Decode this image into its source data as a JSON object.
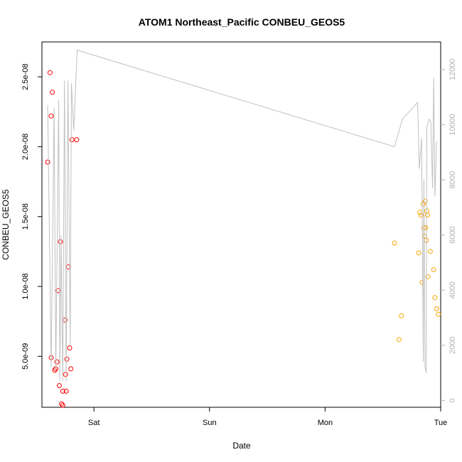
{
  "chart_data": {
    "type": "scatter",
    "title": "ATOM1 Northeast_Pacific CONBEU_GEOS5",
    "xlabel": "Date",
    "ylabel": "CONBEU_GEOS5",
    "x_units": "days since Fri 00:00",
    "xlim": [
      0.55,
      4.0
    ],
    "ylim": [
      1.35e-09,
      2.75e-08
    ],
    "y2lim": [
      -250,
      13000
    ],
    "x_ticks": [
      {
        "value": 1.0,
        "label": "Sat"
      },
      {
        "value": 2.0,
        "label": "Sun"
      },
      {
        "value": 3.0,
        "label": "Mon"
      },
      {
        "value": 4.0,
        "label": "Tue"
      }
    ],
    "y_ticks": [
      {
        "value": 5e-09,
        "label": "5.0e-09"
      },
      {
        "value": 1e-08,
        "label": "1.0e-08"
      },
      {
        "value": 1.5e-08,
        "label": "1.5e-08"
      },
      {
        "value": 2e-08,
        "label": "2.0e-08"
      },
      {
        "value": 2.5e-08,
        "label": "2.5e-08"
      }
    ],
    "y2_ticks": [
      {
        "value": 0,
        "label": "0"
      },
      {
        "value": 2000,
        "label": "2000"
      },
      {
        "value": 4000,
        "label": "4000"
      },
      {
        "value": 6000,
        "label": "6000"
      },
      {
        "value": 8000,
        "label": "8000"
      },
      {
        "value": 10000,
        "label": "10000"
      },
      {
        "value": 12000,
        "label": "12000"
      }
    ],
    "grid": false,
    "series": [
      {
        "role": "points",
        "color": "#ff0000",
        "points": [
          [
            0.6,
            1.89e-08
          ],
          [
            0.62,
            2.53e-08
          ],
          [
            0.63,
            2.22e-08
          ],
          [
            0.64,
            2.39e-08
          ],
          [
            0.63,
            4.9e-09
          ],
          [
            0.66,
            4e-09
          ],
          [
            0.67,
            4.1e-09
          ],
          [
            0.68,
            4.6e-09
          ],
          [
            0.69,
            9.7e-09
          ],
          [
            0.7,
            2.9e-09
          ],
          [
            0.71,
            1.32e-08
          ],
          [
            0.72,
            1.6e-09
          ],
          [
            0.73,
            1.5e-09
          ],
          [
            0.73,
            2.5e-09
          ],
          [
            0.75,
            7.6e-09
          ],
          [
            0.755,
            3.7e-09
          ],
          [
            0.76,
            2.5e-09
          ],
          [
            0.765,
            4.8e-09
          ],
          [
            0.78,
            1.14e-08
          ],
          [
            0.79,
            5.6e-09
          ],
          [
            0.8,
            4.1e-09
          ],
          [
            0.81,
            2.05e-08
          ],
          [
            0.85,
            2.05e-08
          ]
        ]
      },
      {
        "role": "points",
        "color": "#ffa500",
        "points": [
          [
            3.6,
            1.31e-08
          ],
          [
            3.64,
            6.2e-09
          ],
          [
            3.66,
            7.9e-09
          ],
          [
            3.81,
            1.24e-08
          ],
          [
            3.82,
            1.53e-08
          ],
          [
            3.83,
            1.51e-08
          ],
          [
            3.84,
            1.03e-08
          ],
          [
            3.85,
            1.59e-08
          ],
          [
            3.855,
            1.42e-08
          ],
          [
            3.86,
            1.36e-08
          ],
          [
            3.865,
            1.61e-08
          ],
          [
            3.87,
            1.42e-08
          ],
          [
            3.875,
            1.33e-08
          ],
          [
            3.88,
            1.54e-08
          ],
          [
            3.885,
            1.51e-08
          ],
          [
            3.89,
            1.07e-08
          ],
          [
            3.91,
            1.25e-08
          ],
          [
            3.94,
            1.12e-08
          ],
          [
            3.95,
            9.2e-09
          ],
          [
            3.965,
            8.4e-09
          ],
          [
            3.98,
            8e-09
          ]
        ]
      },
      {
        "role": "line",
        "axis": "right",
        "color": "#c0c0c0",
        "points": [
          [
            0.6,
            10700
          ],
          [
            0.63,
            1200
          ],
          [
            0.655,
            10600
          ],
          [
            0.67,
            1100
          ],
          [
            0.695,
            10900
          ],
          [
            0.705,
            700
          ],
          [
            0.715,
            6000
          ],
          [
            0.73,
            700
          ],
          [
            0.745,
            11600
          ],
          [
            0.76,
            700
          ],
          [
            0.775,
            11600
          ],
          [
            0.795,
            2000
          ],
          [
            0.805,
            11500
          ],
          [
            0.825,
            9800
          ],
          [
            0.855,
            12700
          ],
          [
            3.6,
            9200
          ],
          [
            3.67,
            10200
          ],
          [
            3.8,
            10800
          ],
          [
            3.815,
            8400
          ],
          [
            3.835,
            9500
          ],
          [
            3.85,
            1400
          ],
          [
            3.855,
            8000
          ],
          [
            3.865,
            1200
          ],
          [
            3.875,
            1000
          ],
          [
            3.88,
            9900
          ],
          [
            3.9,
            10200
          ],
          [
            3.915,
            10100
          ],
          [
            3.93,
            7700
          ],
          [
            3.94,
            11700
          ],
          [
            3.95,
            7400
          ],
          [
            3.965,
            9400
          ]
        ]
      }
    ]
  }
}
